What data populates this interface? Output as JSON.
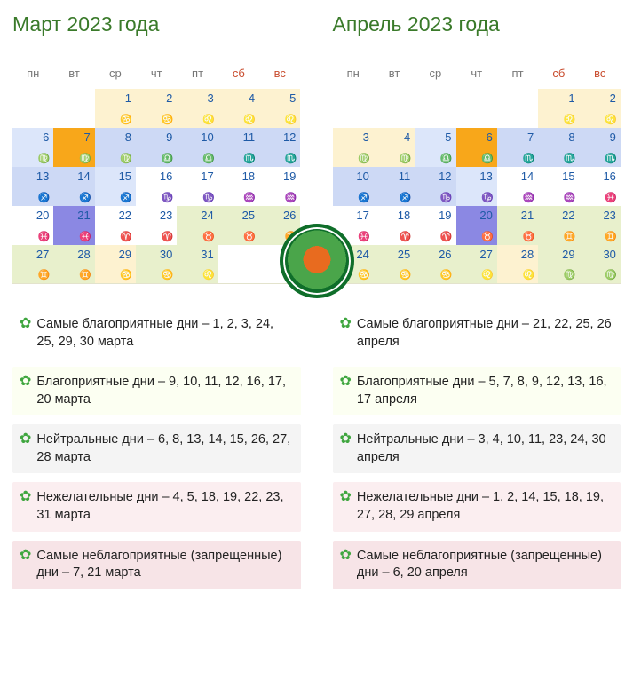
{
  "colors": {
    "title": "#3a7a2a",
    "weekday_text": "#777777",
    "weekend_text": "#c94d2f",
    "day_number": "#1e5aa6"
  },
  "cell_backgrounds": {
    "yellow": "#fdf2d0",
    "blue_light": "#dce6fa",
    "blue_mid": "#cdd9f5",
    "green": "#e8f0cc",
    "orange": "#f8a71a",
    "violet": "#8b88e3",
    "white": "#ffffff"
  },
  "legend_backgrounds": {
    "best": "#ffffff",
    "good": "#fcfff2",
    "neutral": "#f4f4f4",
    "undesired": "#fbeef0",
    "worst": "#f7e4e7"
  },
  "badge_text": "САДОВОДЫ-ОГОРОДНИКИ-ЦВЕТОВОДЫ РОССИИ",
  "titles": {
    "march": "Март 2023 года",
    "april": "Апрель 2023 года"
  },
  "weekdays": [
    "пн",
    "вт",
    "ср",
    "чт",
    "пт",
    "сб",
    "вс"
  ],
  "weekend_indices": [
    5,
    6
  ],
  "zodiac": {
    "aries": "♈",
    "taurus": "♉",
    "gemini": "♊",
    "cancer": "♋",
    "leo": "♌",
    "virgo": "♍",
    "libra": "♎",
    "scorpio": "♏",
    "sagittarius": "♐",
    "capricorn": "♑",
    "aquarius": "♒",
    "pisces": "♓"
  },
  "march": [
    [
      null,
      null,
      {
        "d": 1,
        "z": "♋",
        "c": "yellow"
      },
      {
        "d": 2,
        "z": "♋",
        "c": "yellow"
      },
      {
        "d": 3,
        "z": "♌",
        "c": "yellow"
      },
      {
        "d": 4,
        "z": "♌",
        "c": "yellow"
      },
      {
        "d": 5,
        "z": "♌",
        "c": "yellow"
      }
    ],
    [
      {
        "d": 6,
        "z": "♍",
        "c": "blue1"
      },
      {
        "d": 7,
        "z": "♍",
        "c": "orange"
      },
      {
        "d": 8,
        "z": "♍",
        "c": "blue2"
      },
      {
        "d": 9,
        "z": "♎",
        "c": "blue2"
      },
      {
        "d": 10,
        "z": "♎",
        "c": "blue2"
      },
      {
        "d": 11,
        "z": "♏",
        "c": "blue2"
      },
      {
        "d": 12,
        "z": "♏",
        "c": "blue2"
      }
    ],
    [
      {
        "d": 13,
        "z": "♐",
        "c": "blue2"
      },
      {
        "d": 14,
        "z": "♐",
        "c": "blue2"
      },
      {
        "d": 15,
        "z": "♐",
        "c": "blue1"
      },
      {
        "d": 16,
        "z": "♑",
        "c": "white"
      },
      {
        "d": 17,
        "z": "♑",
        "c": "white"
      },
      {
        "d": 18,
        "z": "♒",
        "c": "white"
      },
      {
        "d": 19,
        "z": "♒",
        "c": "white"
      }
    ],
    [
      {
        "d": 20,
        "z": "♓",
        "c": "white"
      },
      {
        "d": 21,
        "z": "♓",
        "c": "violet"
      },
      {
        "d": 22,
        "z": "♈",
        "c": "white"
      },
      {
        "d": 23,
        "z": "♈",
        "c": "white"
      },
      {
        "d": 24,
        "z": "♉",
        "c": "green"
      },
      {
        "d": 25,
        "z": "♉",
        "c": "green"
      },
      {
        "d": 26,
        "z": "♊",
        "c": "green"
      }
    ],
    [
      {
        "d": 27,
        "z": "♊",
        "c": "green"
      },
      {
        "d": 28,
        "z": "♊",
        "c": "green"
      },
      {
        "d": 29,
        "z": "♋",
        "c": "yellow"
      },
      {
        "d": 30,
        "z": "♋",
        "c": "green"
      },
      {
        "d": 31,
        "z": "♌",
        "c": "green"
      },
      null,
      null
    ]
  ],
  "april": [
    [
      null,
      null,
      null,
      null,
      null,
      {
        "d": 1,
        "z": "♌",
        "c": "yellow"
      },
      {
        "d": 2,
        "z": "♌",
        "c": "yellow"
      }
    ],
    [
      {
        "d": 3,
        "z": "♍",
        "c": "yellow"
      },
      {
        "d": 4,
        "z": "♍",
        "c": "yellow"
      },
      {
        "d": 5,
        "z": "♎",
        "c": "blue1"
      },
      {
        "d": 6,
        "z": "♎",
        "c": "orange"
      },
      {
        "d": 7,
        "z": "♏",
        "c": "blue2"
      },
      {
        "d": 8,
        "z": "♏",
        "c": "blue2"
      },
      {
        "d": 9,
        "z": "♏",
        "c": "blue2"
      }
    ],
    [
      {
        "d": 10,
        "z": "♐",
        "c": "blue2"
      },
      {
        "d": 11,
        "z": "♐",
        "c": "blue2"
      },
      {
        "d": 12,
        "z": "♑",
        "c": "blue2"
      },
      {
        "d": 13,
        "z": "♑",
        "c": "blue1"
      },
      {
        "d": 14,
        "z": "♒",
        "c": "white"
      },
      {
        "d": 15,
        "z": "♒",
        "c": "white"
      },
      {
        "d": 16,
        "z": "♓",
        "c": "white"
      }
    ],
    [
      {
        "d": 17,
        "z": "♓",
        "c": "white"
      },
      {
        "d": 18,
        "z": "♈",
        "c": "white"
      },
      {
        "d": 19,
        "z": "♈",
        "c": "white"
      },
      {
        "d": 20,
        "z": "♉",
        "c": "violet"
      },
      {
        "d": 21,
        "z": "♉",
        "c": "green"
      },
      {
        "d": 22,
        "z": "♊",
        "c": "green"
      },
      {
        "d": 23,
        "z": "♊",
        "c": "green"
      }
    ],
    [
      {
        "d": 24,
        "z": "♋",
        "c": "green"
      },
      {
        "d": 25,
        "z": "♋",
        "c": "green"
      },
      {
        "d": 26,
        "z": "♋",
        "c": "green"
      },
      {
        "d": 27,
        "z": "♌",
        "c": "green"
      },
      {
        "d": 28,
        "z": "♌",
        "c": "yellow"
      },
      {
        "d": 29,
        "z": "♍",
        "c": "green"
      },
      {
        "d": 30,
        "z": "♍",
        "c": "green"
      }
    ]
  ],
  "legend_march": [
    {
      "style": "s1",
      "text": "Самые благоприятные дни – 1, 2, 3, 24, 25, 29, 30 марта"
    },
    {
      "style": "s2",
      "text": "Благоприятные дни – 9, 10, 11, 12, 16, 17, 20 марта"
    },
    {
      "style": "s3",
      "text": "Нейтральные дни – 6, 8, 13, 14, 15, 26, 27, 28 марта"
    },
    {
      "style": "s4",
      "text": "Нежелательные дни – 4, 5, 18, 19, 22, 23, 31 марта"
    },
    {
      "style": "s5",
      "text": "Самые неблагоприятные (запрещенные) дни – 7, 21 марта"
    }
  ],
  "legend_april": [
    {
      "style": "s1",
      "text": "Самые благоприятные дни – 21, 22, 25, 26 апреля"
    },
    {
      "style": "s2",
      "text": "Благоприятные дни – 5, 7, 8, 9, 12, 13, 16, 17 апреля"
    },
    {
      "style": "s3",
      "text": "Нейтральные дни – 3, 4, 10, 11, 23, 24, 30 апреля"
    },
    {
      "style": "s4",
      "text": "Нежелательные дни – 1, 2, 14, 15, 18, 19, 27, 28, 29 апреля"
    },
    {
      "style": "s5",
      "text": "Самые неблагоприятные (запрещенные) дни – 6, 20 апреля"
    }
  ]
}
